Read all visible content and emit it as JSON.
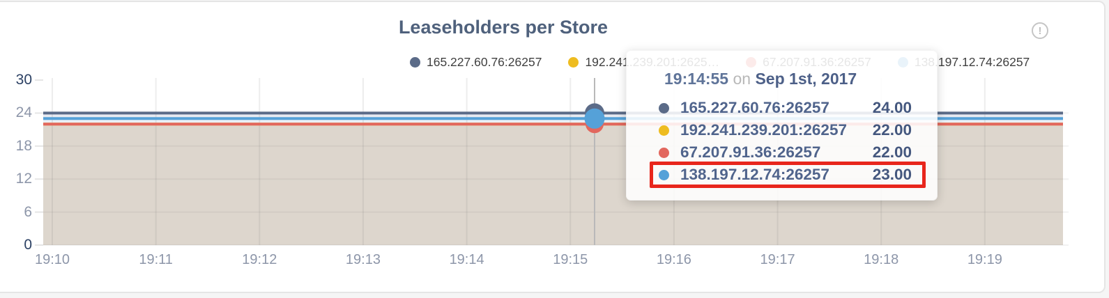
{
  "card": {
    "title": "Leaseholders per Store",
    "info_icon_glyph": "!"
  },
  "legend": {
    "items": [
      {
        "label": "165.227.60.76:26257",
        "color": "#5b6b88"
      },
      {
        "label": "192.241.239.201:2625…",
        "color": "#eebc20"
      },
      {
        "label": "67.207.91.36:26257",
        "color": "#e2675e"
      },
      {
        "label": "138.197.12.74:26257",
        "color": "#55a1d8"
      }
    ]
  },
  "tooltip": {
    "time": "19:14:55",
    "conj": "on",
    "date": "Sep 1st, 2017",
    "rows": [
      {
        "label": "165.227.60.76:26257",
        "value": "24.00",
        "color": "#5b6b88",
        "highlighted": false
      },
      {
        "label": "192.241.239.201:26257",
        "value": "22.00",
        "color": "#eebc20",
        "highlighted": false
      },
      {
        "label": "67.207.91.36:26257",
        "value": "22.00",
        "color": "#e2675e",
        "highlighted": false
      },
      {
        "label": "138.197.12.74:26257",
        "value": "23.00",
        "color": "#55a1d8",
        "highlighted": true
      }
    ],
    "highlight_color": "#e8261c"
  },
  "chart_data": {
    "type": "area",
    "title": "Leaseholders per Store",
    "xlabel": "",
    "ylabel": "",
    "ylim": [
      0,
      30
    ],
    "x_ticks": [
      "19:10",
      "19:11",
      "19:12",
      "19:13",
      "19:14",
      "19:15",
      "19:16",
      "19:17",
      "19:18",
      "19:19"
    ],
    "y_ticks": [
      30,
      24,
      18,
      12,
      6,
      0
    ],
    "grid": true,
    "legend_position": "top",
    "hover": {
      "time": "19:14:55",
      "date": "Sep 1st, 2017"
    },
    "series": [
      {
        "name": "165.227.60.76:26257",
        "color": "#5b6b88",
        "value": 24,
        "dot_r": 14
      },
      {
        "name": "192.241.239.201:26257",
        "color": "#eebc20",
        "value": 22,
        "dot_r": 12
      },
      {
        "name": "67.207.91.36:26257",
        "color": "#e2675e",
        "value": 22,
        "dot_r": 13
      },
      {
        "name": "138.197.12.74:26257",
        "color": "#55a1d8",
        "value": 23,
        "dot_r": 14.5
      }
    ],
    "bands": [
      {
        "from": 24,
        "to": 23,
        "color": "#e7eaf1"
      },
      {
        "from": 23,
        "to": 22,
        "color": "#eaeff5"
      },
      {
        "from": 22,
        "to": 0,
        "color": "#ddd6cd"
      }
    ]
  }
}
